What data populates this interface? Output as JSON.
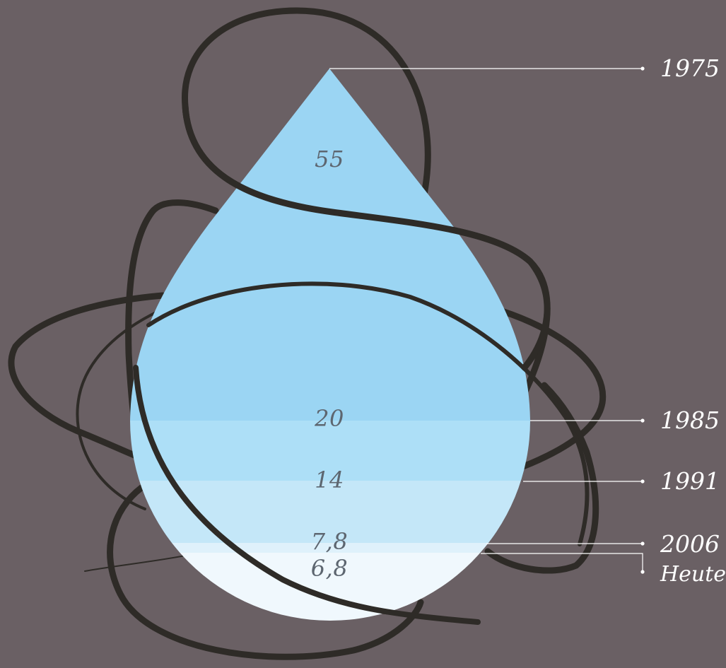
{
  "chart_data": {
    "type": "area",
    "shape": "water-drop",
    "title": "",
    "levels": [
      {
        "year": "1975",
        "value": "55",
        "color": "#9bd5f3"
      },
      {
        "year": "1985",
        "value": "20",
        "color": "#addff7"
      },
      {
        "year": "1991",
        "value": "14",
        "color": "#c4e7f8"
      },
      {
        "year": "2006",
        "value": "7,8",
        "color": "#dff1fb"
      },
      {
        "year": "Heute",
        "value": "6,8",
        "color": "#f0f8fd"
      }
    ],
    "colors": {
      "background": "#6a6064",
      "value_text": "#5d6670",
      "leader_line": "#ffffff",
      "year_text": "#ffffff",
      "scribble": "#2e2b27"
    }
  }
}
